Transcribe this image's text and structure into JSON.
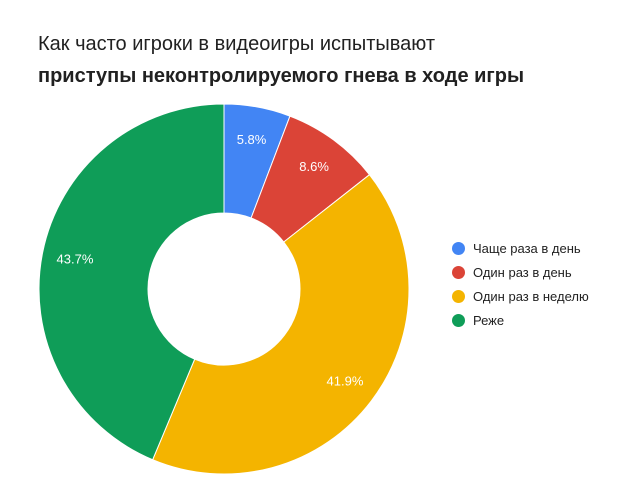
{
  "title": {
    "line1": "Как часто игроки в видеоигры испытывают",
    "line2": "приступы неконтролируемого гнева в ходе игры"
  },
  "chart_data": {
    "type": "pie",
    "donut": true,
    "title": "Как часто игроки в видеоигры испытывают приступы неконтролируемого гнева в ходе игры",
    "legend_position": "right",
    "series": [
      {
        "name": "Чаще раза в день",
        "value": 5.8,
        "label": "5.8%",
        "color": "#4285F4"
      },
      {
        "name": "Один раз в день",
        "value": 8.6,
        "label": "8.6%",
        "color": "#DB4437"
      },
      {
        "name": "Один раз в неделю",
        "value": 41.9,
        "label": "41.9%",
        "color": "#F4B400"
      },
      {
        "name": "Реже",
        "value": 43.7,
        "label": "43.7%",
        "color": "#0F9D58"
      }
    ]
  }
}
